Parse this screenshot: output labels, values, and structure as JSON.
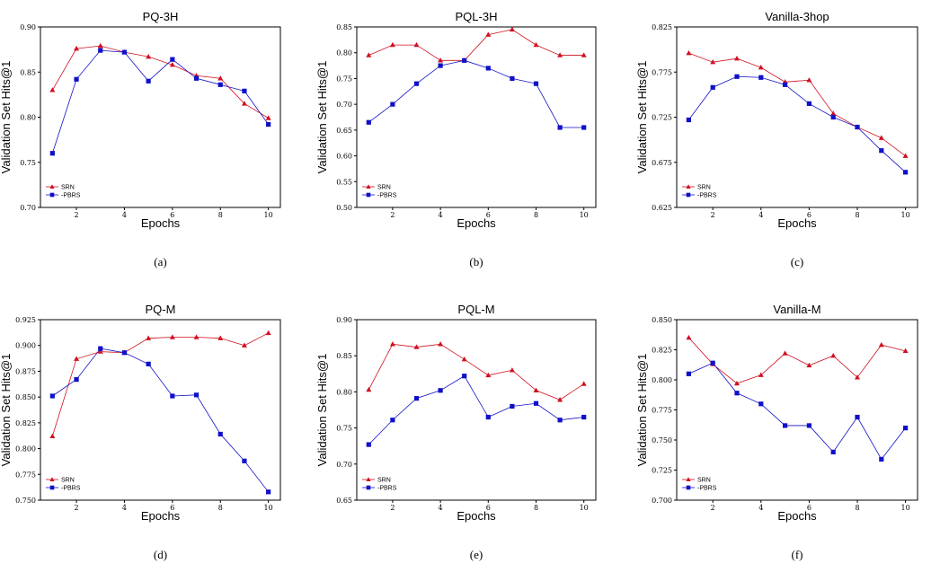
{
  "chart_data": [
    {
      "type": "line",
      "title": "PQ-3H",
      "xlabel": "Epochs",
      "ylabel": "Validation Set Hits@1",
      "caption": "(a)",
      "xlim": [
        0.5,
        10.5
      ],
      "ylim": [
        0.7,
        0.9
      ],
      "x": [
        1,
        2,
        3,
        4,
        5,
        6,
        7,
        8,
        9,
        10
      ],
      "xticks": [
        2,
        4,
        6,
        8,
        10
      ],
      "yticks": [
        0.7,
        0.75,
        0.8,
        0.85,
        0.9
      ],
      "ytick_labels": [
        "0.70",
        "0.75",
        "0.80",
        "0.85",
        "0.90"
      ],
      "legend_position": "lower-left",
      "series": [
        {
          "name": "SRN",
          "color": "#d01020",
          "marker": "triangle",
          "values": [
            0.83,
            0.876,
            0.879,
            0.872,
            0.867,
            0.858,
            0.846,
            0.843,
            0.815,
            0.799
          ]
        },
        {
          "name": "-PBRS",
          "color": "#1010c8",
          "marker": "square",
          "values": [
            0.76,
            0.842,
            0.874,
            0.872,
            0.84,
            0.864,
            0.843,
            0.836,
            0.829,
            0.792
          ]
        }
      ]
    },
    {
      "type": "line",
      "title": "PQL-3H",
      "xlabel": "Epochs",
      "ylabel": "Validation Set Hits@1",
      "caption": "(b)",
      "xlim": [
        0.5,
        10.5
      ],
      "ylim": [
        0.5,
        0.85
      ],
      "x": [
        1,
        2,
        3,
        4,
        5,
        6,
        7,
        8,
        9,
        10
      ],
      "xticks": [
        2,
        4,
        6,
        8,
        10
      ],
      "yticks": [
        0.5,
        0.55,
        0.6,
        0.65,
        0.7,
        0.75,
        0.8,
        0.85
      ],
      "ytick_labels": [
        "0.50",
        "0.55",
        "0.60",
        "0.65",
        "0.70",
        "0.75",
        "0.80",
        "0.85"
      ],
      "legend_position": "lower-left",
      "series": [
        {
          "name": "SRN",
          "color": "#d01020",
          "marker": "triangle",
          "values": [
            0.795,
            0.815,
            0.815,
            0.785,
            0.785,
            0.835,
            0.845,
            0.815,
            0.795,
            0.795
          ]
        },
        {
          "name": "-PBRS",
          "color": "#1010c8",
          "marker": "square",
          "values": [
            0.665,
            0.7,
            0.74,
            0.775,
            0.785,
            0.77,
            0.75,
            0.74,
            0.655,
            0.655
          ]
        }
      ]
    },
    {
      "type": "line",
      "title": "Vanilla-3hop",
      "xlabel": "Epochs",
      "ylabel": "Validation Set Hits@1",
      "caption": "(c)",
      "xlim": [
        0.5,
        10.5
      ],
      "ylim": [
        0.625,
        0.825
      ],
      "x": [
        1,
        2,
        3,
        4,
        5,
        6,
        7,
        8,
        9,
        10
      ],
      "xticks": [
        2,
        4,
        6,
        8,
        10
      ],
      "yticks": [
        0.625,
        0.675,
        0.725,
        0.775,
        0.825
      ],
      "ytick_labels": [
        "0.625",
        "0.675",
        "0.725",
        "0.775",
        "0.825"
      ],
      "legend_position": "lower-left",
      "series": [
        {
          "name": "SRN",
          "color": "#d01020",
          "marker": "triangle",
          "values": [
            0.796,
            0.786,
            0.79,
            0.78,
            0.764,
            0.766,
            0.729,
            0.714,
            0.702,
            0.682
          ]
        },
        {
          "name": "-PBRS",
          "color": "#1010c8",
          "marker": "square",
          "values": [
            0.722,
            0.758,
            0.77,
            0.769,
            0.761,
            0.74,
            0.725,
            0.714,
            0.688,
            0.664
          ]
        }
      ]
    },
    {
      "type": "line",
      "title": "PQ-M",
      "xlabel": "Epochs",
      "ylabel": "Validation Set Hits@1",
      "caption": "(d)",
      "xlim": [
        0.5,
        10.5
      ],
      "ylim": [
        0.75,
        0.925
      ],
      "x": [
        1,
        2,
        3,
        4,
        5,
        6,
        7,
        8,
        9,
        10
      ],
      "xticks": [
        2,
        4,
        6,
        8,
        10
      ],
      "yticks": [
        0.75,
        0.775,
        0.8,
        0.825,
        0.85,
        0.875,
        0.9,
        0.925
      ],
      "ytick_labels": [
        "0.750",
        "0.775",
        "0.800",
        "0.825",
        "0.850",
        "0.875",
        "0.900",
        "0.925"
      ],
      "legend_position": "lower-left",
      "series": [
        {
          "name": "SRN",
          "color": "#d01020",
          "marker": "triangle",
          "values": [
            0.812,
            0.887,
            0.894,
            0.893,
            0.907,
            0.908,
            0.908,
            0.907,
            0.9,
            0.912
          ]
        },
        {
          "name": "-PBRS",
          "color": "#1010c8",
          "marker": "square",
          "values": [
            0.851,
            0.867,
            0.897,
            0.893,
            0.882,
            0.851,
            0.852,
            0.814,
            0.788,
            0.758
          ]
        }
      ]
    },
    {
      "type": "line",
      "title": "PQL-M",
      "xlabel": "Epochs",
      "ylabel": "Validation Set Hits@1",
      "caption": "(e)",
      "xlim": [
        0.5,
        10.5
      ],
      "ylim": [
        0.65,
        0.9
      ],
      "x": [
        1,
        2,
        3,
        4,
        5,
        6,
        7,
        8,
        9,
        10
      ],
      "xticks": [
        2,
        4,
        6,
        8,
        10
      ],
      "yticks": [
        0.65,
        0.7,
        0.75,
        0.8,
        0.85,
        0.9
      ],
      "ytick_labels": [
        "0.65",
        "0.70",
        "0.75",
        "0.80",
        "0.85",
        "0.90"
      ],
      "legend_position": "lower-left",
      "series": [
        {
          "name": "SRN",
          "color": "#d01020",
          "marker": "triangle",
          "values": [
            0.803,
            0.866,
            0.862,
            0.866,
            0.845,
            0.823,
            0.83,
            0.802,
            0.789,
            0.811
          ]
        },
        {
          "name": "-PBRS",
          "color": "#1010c8",
          "marker": "square",
          "values": [
            0.727,
            0.761,
            0.791,
            0.802,
            0.822,
            0.765,
            0.78,
            0.784,
            0.761,
            0.765
          ]
        }
      ]
    },
    {
      "type": "line",
      "title": "Vanilla-M",
      "xlabel": "Epochs",
      "ylabel": "Validation Set Hits@1",
      "caption": "(f)",
      "xlim": [
        0.5,
        10.5
      ],
      "ylim": [
        0.7,
        0.85
      ],
      "x": [
        1,
        2,
        3,
        4,
        5,
        6,
        7,
        8,
        9,
        10
      ],
      "xticks": [
        2,
        4,
        6,
        8,
        10
      ],
      "yticks": [
        0.7,
        0.725,
        0.75,
        0.775,
        0.8,
        0.825,
        0.85
      ],
      "ytick_labels": [
        "0.700",
        "0.725",
        "0.750",
        "0.775",
        "0.800",
        "0.825",
        "0.850"
      ],
      "legend_position": "lower-left",
      "series": [
        {
          "name": "SRN",
          "color": "#d01020",
          "marker": "triangle",
          "values": [
            0.835,
            0.813,
            0.797,
            0.804,
            0.822,
            0.812,
            0.82,
            0.802,
            0.829,
            0.824
          ]
        },
        {
          "name": "-PBRS",
          "color": "#1010c8",
          "marker": "square",
          "values": [
            0.805,
            0.814,
            0.789,
            0.78,
            0.762,
            0.762,
            0.74,
            0.769,
            0.734,
            0.76
          ]
        }
      ]
    }
  ]
}
